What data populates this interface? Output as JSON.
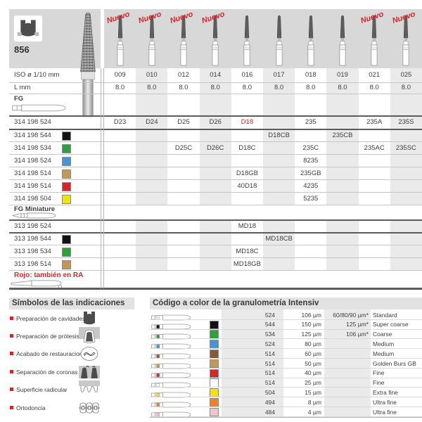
{
  "banner": {
    "product_number": "856",
    "nuevo_label": "Nuevo",
    "nuevo_columns": [
      0,
      1,
      2,
      3,
      8,
      9
    ],
    "bur_count": 10
  },
  "measures": {
    "iso_label": "ISO ø 1/10 mm",
    "length_label": "L mm",
    "iso_values": [
      "009",
      "010",
      "012",
      "014",
      "016",
      "017",
      "018",
      "019",
      "021",
      "025"
    ],
    "length_values": [
      "8.0",
      "8.0",
      "8.0",
      "8.0",
      "8.0",
      "8.0",
      "8.0",
      "8.0",
      "8.0",
      "8.0"
    ]
  },
  "fg_section": {
    "label": "FG",
    "rows": [
      {
        "code": "314 198 524",
        "color": null,
        "cells": [
          {
            "col": 0,
            "text": "D23"
          },
          {
            "col": 1,
            "text": "D24"
          },
          {
            "col": 2,
            "text": "D25"
          },
          {
            "col": 3,
            "text": "D26"
          },
          {
            "col": 4,
            "text": "D18",
            "red": true
          },
          {
            "col": 6,
            "text": "235"
          },
          {
            "col": 8,
            "text": "235A"
          },
          {
            "col": 9,
            "text": "235S"
          }
        ]
      },
      {
        "code": "314 198 544",
        "color": "#111111",
        "cells": [
          {
            "col": 5,
            "text": "D18CB"
          },
          {
            "col": 7,
            "text": "235CB"
          }
        ]
      },
      {
        "code": "314 198 534",
        "color": "#2ba339",
        "cells": [
          {
            "col": 2,
            "text": "D25C"
          },
          {
            "col": 3,
            "text": "D26C"
          },
          {
            "col": 4,
            "text": "D18C"
          },
          {
            "col": 6,
            "text": "235C"
          },
          {
            "col": 8,
            "text": "235AC"
          },
          {
            "col": 9,
            "text": "235SC"
          }
        ]
      },
      {
        "code": "314 198 524",
        "color": "#4595d6",
        "cells": [
          {
            "col": 6,
            "text": "8235"
          }
        ]
      },
      {
        "code": "314 198 514",
        "color": "#c79750",
        "cells": [
          {
            "col": 4,
            "text": "D18GB"
          },
          {
            "col": 6,
            "text": "235GB"
          }
        ]
      },
      {
        "code": "314 198 514",
        "color": "#dc2127",
        "cells": [
          {
            "col": 4,
            "text": "40D18"
          },
          {
            "col": 6,
            "text": "4235"
          }
        ]
      },
      {
        "code": "314 198 504",
        "color": "#f5e20a",
        "cells": [
          {
            "col": 6,
            "text": "5235"
          }
        ]
      }
    ]
  },
  "miniature_section": {
    "label": "FG Miniature",
    "footnote": "Rojo: también en RA",
    "rows": [
      {
        "code": "313 198 524",
        "color": null,
        "cells": [
          {
            "col": 4,
            "text": "MD18"
          }
        ]
      },
      {
        "code": "313 198 544",
        "color": "#111111",
        "cells": [
          {
            "col": 5,
            "text": "MD18CB"
          }
        ]
      },
      {
        "code": "313 198 534",
        "color": "#2ba339",
        "cells": [
          {
            "col": 4,
            "text": "MD18C"
          }
        ]
      },
      {
        "code": "313 198 514",
        "color": "#c79750",
        "cells": [
          {
            "col": 4,
            "text": "MD18GB"
          }
        ]
      }
    ]
  },
  "symbols": {
    "title": "Símbolos de las indicaciones",
    "items": [
      {
        "label": "Preparación de cavidades",
        "icon": "cavity-preparation-icon"
      },
      {
        "label": "Preparación de prótesis",
        "icon": "prosthesis-preparation-icon"
      },
      {
        "label": "Acabado de restauraciones",
        "icon": "restoration-finishing-icon"
      },
      {
        "label": "Separación de coronas",
        "icon": "crown-separation-icon"
      },
      {
        "label": "Superficie radicular",
        "icon": "root-surface-icon"
      },
      {
        "label": "Ortodoncia",
        "icon": "orthodontics-icon"
      }
    ]
  },
  "granulometry": {
    "title": "Código a color de la granulometría Intensiv",
    "rows": [
      {
        "code": "524",
        "grain": "106 µm",
        "equivalent": "60/80/90 µm*",
        "label": "Standard",
        "color": null
      },
      {
        "code": "544",
        "grain": "150 µm",
        "equivalent": "125 µm*",
        "label": "Super coarse",
        "color": "#111111"
      },
      {
        "code": "534",
        "grain": "125 µm",
        "equivalent": "106 µm*",
        "label": "Coarse",
        "color": "#2ba339"
      },
      {
        "code": "524",
        "grain": "80 µm",
        "equivalent": "",
        "label": "Medium",
        "color": "#4595d6"
      },
      {
        "code": "514",
        "grain": "60 µm",
        "equivalent": "",
        "label": "Medium",
        "color": "#8a5a33"
      },
      {
        "code": "514",
        "grain": "50 µm",
        "equivalent": "",
        "label": "Golden Burs GB",
        "color": "#c79750"
      },
      {
        "code": "514",
        "grain": "40 µm",
        "equivalent": "",
        "label": "Fine",
        "color": "#dc2127"
      },
      {
        "code": "514",
        "grain": "25 µm",
        "equivalent": "",
        "label": "Fine",
        "color": "#ffffff"
      },
      {
        "code": "504",
        "grain": "15 µm",
        "equivalent": "",
        "label": "Extra fine",
        "color": "#f5e20a"
      },
      {
        "code": "494",
        "grain": "8 µm",
        "equivalent": "",
        "label": "Ultra fine",
        "color": "#f08223"
      },
      {
        "code": "484",
        "grain": "4 µm",
        "equivalent": "",
        "label": "Ultra fine",
        "color": "#f4c2d0"
      }
    ]
  },
  "colors": {
    "accent_red": "#d6262c",
    "banner_gray": "#d8d8d8",
    "column_shade": "#eaeaea"
  }
}
